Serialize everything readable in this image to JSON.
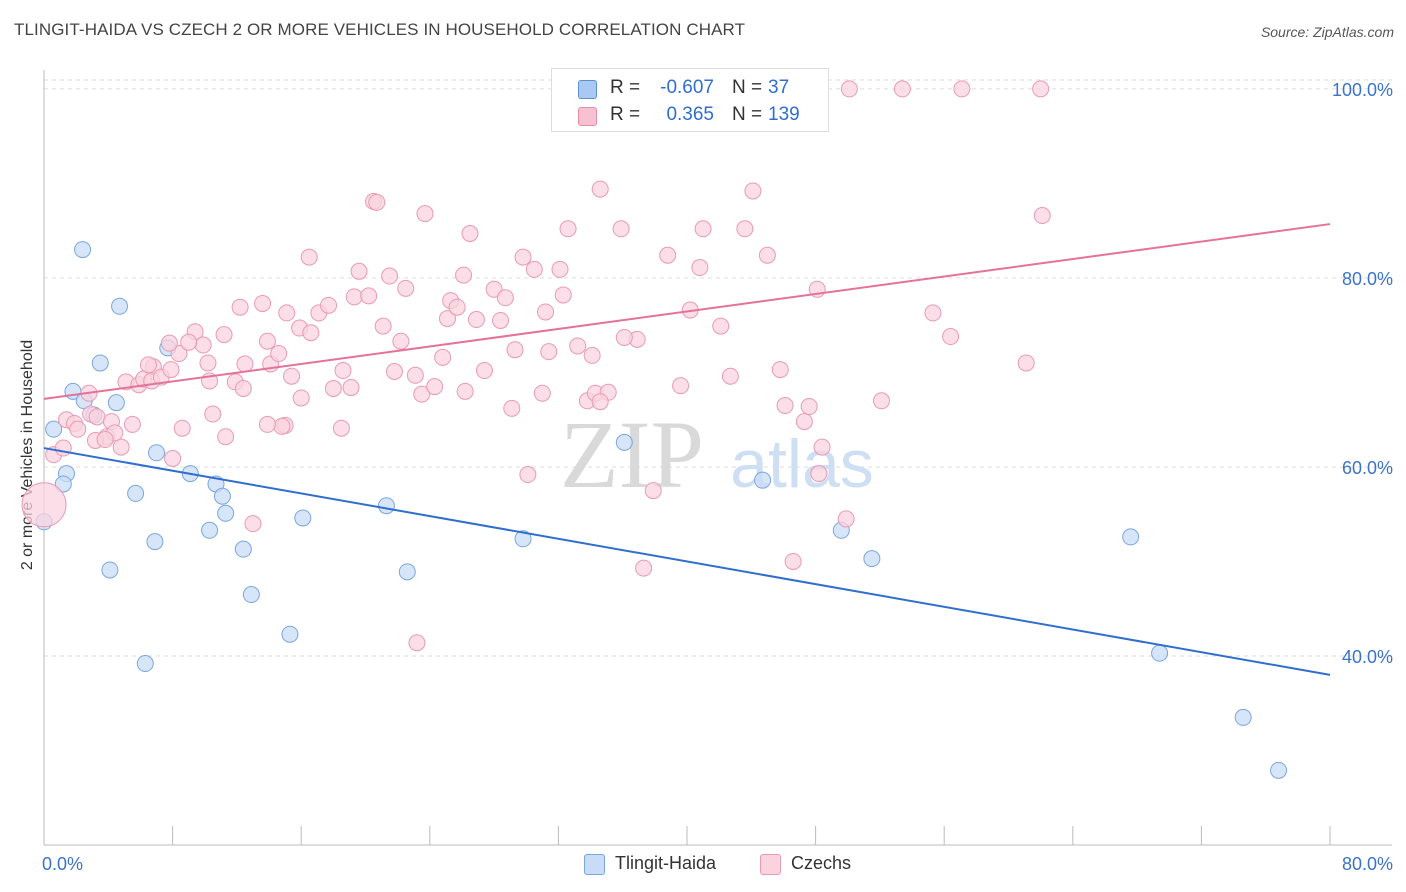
{
  "title": "TLINGIT-HAIDA VS CZECH 2 OR MORE VEHICLES IN HOUSEHOLD CORRELATION CHART",
  "source": "Source: ZipAtlas.com",
  "watermark": {
    "zip": "ZIP",
    "atlas": "atlas"
  },
  "legend": {
    "rows": [
      {
        "r_label": "R =",
        "r_value": "-0.607",
        "n_label": "N =",
        "n_value": "37",
        "color": "#aac9f2",
        "border": "#5b8fd6"
      },
      {
        "r_label": "R =",
        "r_value": "0.365",
        "n_label": "N =",
        "n_value": "139",
        "color": "#f8c1d1",
        "border": "#e88aa8"
      }
    ]
  },
  "bottom_legend": [
    {
      "label": "Tlingit-Haida",
      "color": "#c9dcf7",
      "border": "#7aa6e0"
    },
    {
      "label": "Czechs",
      "color": "#fad3df",
      "border": "#e99ab4"
    }
  ],
  "chart_data": {
    "type": "scatter",
    "title": "TLINGIT-HAIDA VS CZECH 2 OR MORE VEHICLES IN HOUSEHOLD CORRELATION CHART",
    "xlabel": "",
    "ylabel": "2 or more Vehicles in Household",
    "xlim": [
      0,
      80
    ],
    "ylim": [
      20,
      102
    ],
    "x_tick_labels": [
      "0.0%",
      "80.0%"
    ],
    "y_ticks": [
      40,
      60,
      80,
      100
    ],
    "y_tick_labels": [
      "40.0%",
      "60.0%",
      "80.0%",
      "100.0%"
    ],
    "grid": true,
    "series": [
      {
        "name": "Tlingit-Haida",
        "color": "#7aa6e0",
        "fill": "#c9dcf7",
        "line_color": "#2f6ecf",
        "trend": {
          "x": [
            0,
            80
          ],
          "y": [
            62.0,
            38.0
          ]
        },
        "points": [
          [
            2.4,
            83.0
          ],
          [
            4.7,
            77.0
          ],
          [
            3.5,
            71.0
          ],
          [
            1.8,
            68.0
          ],
          [
            2.5,
            67.0
          ],
          [
            4.5,
            66.8
          ],
          [
            3.1,
            65.5
          ],
          [
            0.6,
            64.0
          ],
          [
            1.4,
            59.3
          ],
          [
            1.2,
            58.2
          ],
          [
            0,
            54.2
          ],
          [
            7.7,
            72.6
          ],
          [
            7.0,
            61.5
          ],
          [
            9.1,
            59.3
          ],
          [
            5.7,
            57.2
          ],
          [
            10.7,
            58.2
          ],
          [
            11.1,
            56.9
          ],
          [
            11.3,
            55.1
          ],
          [
            6.9,
            52.1
          ],
          [
            10.3,
            53.3
          ],
          [
            12.4,
            51.3
          ],
          [
            16.1,
            54.6
          ],
          [
            21.3,
            55.9
          ],
          [
            4.1,
            49.1
          ],
          [
            22.6,
            48.9
          ],
          [
            12.9,
            46.5
          ],
          [
            15.3,
            42.3
          ],
          [
            6.3,
            39.2
          ],
          [
            29.8,
            52.4
          ],
          [
            36.1,
            62.6
          ],
          [
            44.7,
            58.6
          ],
          [
            49.6,
            53.3
          ],
          [
            51.5,
            50.3
          ],
          [
            67.6,
            52.6
          ],
          [
            69.4,
            40.3
          ],
          [
            74.6,
            33.5
          ],
          [
            76.8,
            27.9
          ]
        ]
      },
      {
        "name": "Czechs",
        "color": "#e99ab4",
        "fill": "#fad3df",
        "line_color": "#e4729a",
        "trend": {
          "x": [
            0,
            80
          ],
          "y": [
            67.2,
            85.7
          ]
        },
        "points": [
          [
            0.0,
            56.0
          ],
          [
            0.6,
            61.3
          ],
          [
            1.2,
            62.0
          ],
          [
            1.4,
            65.0
          ],
          [
            1.9,
            64.6
          ],
          [
            2.9,
            65.6
          ],
          [
            3.3,
            65.3
          ],
          [
            4.2,
            64.8
          ],
          [
            3.9,
            63.2
          ],
          [
            2.8,
            67.8
          ],
          [
            5.1,
            69.0
          ],
          [
            5.9,
            68.7
          ],
          [
            6.2,
            69.3
          ],
          [
            6.8,
            70.6
          ],
          [
            6.7,
            69.1
          ],
          [
            7.3,
            69.5
          ],
          [
            7.9,
            70.3
          ],
          [
            8.4,
            72.0
          ],
          [
            9.4,
            74.3
          ],
          [
            9.9,
            72.9
          ],
          [
            10.2,
            71.0
          ],
          [
            10.3,
            69.1
          ],
          [
            11.2,
            74.0
          ],
          [
            11.9,
            69.0
          ],
          [
            12.2,
            76.9
          ],
          [
            12.5,
            70.9
          ],
          [
            13.6,
            77.3
          ],
          [
            13.9,
            73.3
          ],
          [
            14.1,
            70.9
          ],
          [
            14.6,
            72.0
          ],
          [
            15.1,
            76.3
          ],
          [
            15.4,
            69.6
          ],
          [
            15.9,
            74.7
          ],
          [
            16.6,
            74.2
          ],
          [
            16.5,
            82.2
          ],
          [
            17.1,
            76.3
          ],
          [
            17.7,
            77.1
          ],
          [
            18.0,
            68.3
          ],
          [
            18.6,
            70.2
          ],
          [
            19.1,
            68.4
          ],
          [
            19.3,
            78.0
          ],
          [
            19.6,
            80.7
          ],
          [
            20.2,
            78.1
          ],
          [
            20.5,
            88.1
          ],
          [
            20.7,
            88.0
          ],
          [
            21.1,
            74.9
          ],
          [
            21.5,
            80.2
          ],
          [
            21.8,
            70.1
          ],
          [
            22.2,
            73.3
          ],
          [
            22.5,
            78.9
          ],
          [
            23.1,
            69.7
          ],
          [
            23.5,
            67.7
          ],
          [
            23.7,
            86.8
          ],
          [
            24.3,
            68.5
          ],
          [
            24.8,
            71.6
          ],
          [
            25.1,
            75.7
          ],
          [
            25.3,
            77.6
          ],
          [
            25.7,
            76.9
          ],
          [
            26.1,
            80.3
          ],
          [
            26.5,
            84.7
          ],
          [
            26.9,
            75.6
          ],
          [
            27.4,
            70.2
          ],
          [
            28.0,
            78.8
          ],
          [
            28.4,
            75.5
          ],
          [
            28.7,
            77.9
          ],
          [
            29.1,
            66.2
          ],
          [
            29.3,
            72.4
          ],
          [
            29.8,
            82.2
          ],
          [
            30.1,
            59.2
          ],
          [
            30.5,
            80.9
          ],
          [
            31.0,
            67.8
          ],
          [
            31.2,
            76.4
          ],
          [
            31.4,
            72.2
          ],
          [
            32.1,
            80.9
          ],
          [
            32.3,
            78.2
          ],
          [
            32.6,
            85.2
          ],
          [
            33.2,
            72.8
          ],
          [
            33.8,
            67.0
          ],
          [
            34.1,
            71.8
          ],
          [
            34.3,
            67.8
          ],
          [
            34.6,
            89.4
          ],
          [
            35.1,
            67.9
          ],
          [
            35.9,
            85.2
          ],
          [
            36.9,
            73.5
          ],
          [
            37.3,
            49.3
          ],
          [
            37.9,
            57.5
          ],
          [
            38.8,
            82.4
          ],
          [
            39.6,
            68.6
          ],
          [
            40.2,
            76.6
          ],
          [
            40.8,
            81.1
          ],
          [
            41.0,
            85.2
          ],
          [
            42.1,
            74.9
          ],
          [
            42.7,
            69.6
          ],
          [
            43.6,
            85.2
          ],
          [
            44.1,
            89.2
          ],
          [
            45.0,
            82.4
          ],
          [
            45.8,
            70.3
          ],
          [
            46.1,
            66.5
          ],
          [
            46.6,
            50.0
          ],
          [
            47.3,
            64.8
          ],
          [
            47.6,
            66.4
          ],
          [
            48.1,
            78.8
          ],
          [
            48.4,
            62.1
          ],
          [
            48.2,
            59.3
          ],
          [
            49.9,
            54.5
          ],
          [
            52.1,
            67.0
          ],
          [
            55.3,
            76.3
          ],
          [
            56.4,
            73.8
          ],
          [
            57.1,
            100.0
          ],
          [
            61.1,
            71.0
          ],
          [
            62.0,
            100.0
          ],
          [
            62.1,
            86.6
          ],
          [
            53.4,
            100.0
          ],
          [
            50.1,
            100.0
          ],
          [
            42.1,
            100.0
          ],
          [
            38.5,
            100.0
          ],
          [
            23.2,
            41.4
          ],
          [
            13.0,
            54.0
          ],
          [
            10.5,
            65.6
          ],
          [
            8.6,
            64.1
          ],
          [
            8.0,
            60.9
          ],
          [
            5.5,
            64.5
          ],
          [
            4.8,
            62.1
          ],
          [
            4.4,
            63.6
          ],
          [
            3.2,
            62.8
          ],
          [
            2.1,
            64.0
          ],
          [
            15.0,
            64.4
          ],
          [
            18.5,
            64.1
          ],
          [
            16.0,
            67.3
          ],
          [
            14.8,
            64.3
          ],
          [
            12.4,
            68.3
          ],
          [
            11.3,
            63.2
          ],
          [
            13.9,
            64.5
          ],
          [
            9.0,
            73.2
          ],
          [
            7.8,
            73.1
          ],
          [
            6.5,
            70.8
          ],
          [
            3.8,
            62.9
          ],
          [
            36.1,
            73.7
          ],
          [
            34.6,
            66.9
          ],
          [
            26.2,
            68.0
          ]
        ]
      }
    ]
  }
}
